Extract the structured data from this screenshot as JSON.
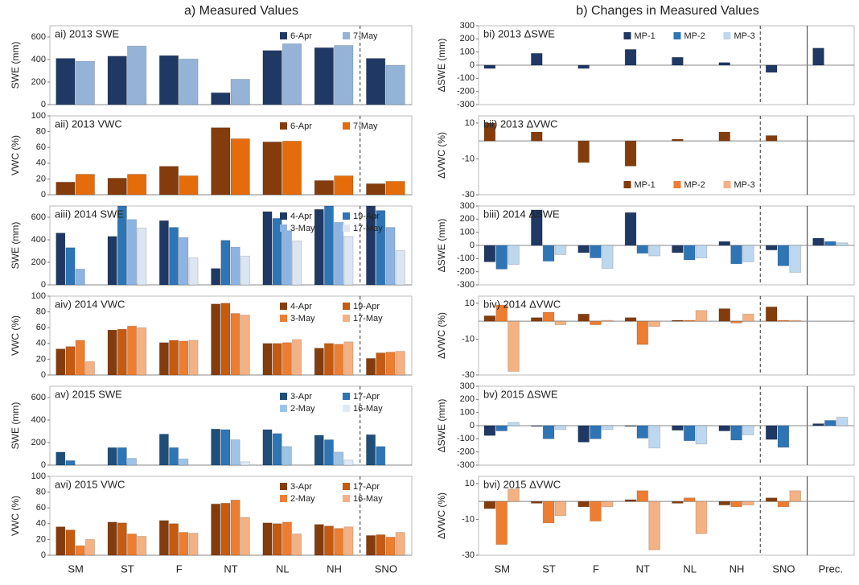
{
  "column_titles": [
    "a) Measured Values",
    "b) Changes in Measured Values"
  ],
  "chart_data": [
    {
      "type": "bar",
      "title": "ai) 2013 SWE",
      "ylabel": "SWE (mm)",
      "ylim": [
        0,
        700
      ],
      "yticks": [
        0,
        200,
        400,
        600
      ],
      "legend": "upper right",
      "series": [
        {
          "name": "6-Apr",
          "color": "#1f3864",
          "values": [
            410,
            430,
            435,
            105,
            480,
            505,
            410
          ]
        },
        {
          "name": "7-May",
          "color": "#95b3d7",
          "values": [
            385,
            520,
            405,
            225,
            540,
            525,
            350
          ]
        }
      ]
    },
    {
      "type": "bar",
      "title": "aii) 2013 VWC",
      "ylabel": "VWC (%)",
      "ylim": [
        0,
        100
      ],
      "yticks": [
        0,
        20,
        40,
        60,
        80,
        100
      ],
      "legend": "upper right",
      "series": [
        {
          "name": "6-Apr",
          "color": "#843c0c",
          "values": [
            16,
            21,
            36,
            85,
            67,
            18,
            14
          ]
        },
        {
          "name": "7-May",
          "color": "#e46c0a",
          "values": [
            26,
            26,
            24,
            71,
            68,
            24,
            17
          ]
        }
      ]
    },
    {
      "type": "bar",
      "title": "aiii) 2014 SWE",
      "ylabel": "SWE (mm)",
      "ylim": [
        0,
        700
      ],
      "yticks": [
        0,
        200,
        400,
        600
      ],
      "legend": "upper right",
      "series": [
        {
          "name": "4-Apr",
          "color": "#1f3864",
          "values": [
            460,
            430,
            570,
            145,
            650,
            670,
            700
          ]
        },
        {
          "name": "19-Apr",
          "color": "#2e75b6",
          "values": [
            330,
            700,
            510,
            395,
            590,
            700,
            660
          ]
        },
        {
          "name": "3-May",
          "color": "#8db3e2",
          "values": [
            140,
            580,
            420,
            335,
            480,
            555,
            510
          ]
        },
        {
          "name": "17-May",
          "color": "#dce6f2",
          "values": [
            null,
            505,
            240,
            255,
            390,
            430,
            305
          ]
        }
      ]
    },
    {
      "type": "bar",
      "title": "aiv) 2014 VWC",
      "ylabel": "VWC (%)",
      "ylim": [
        0,
        100
      ],
      "yticks": [
        0,
        20,
        40,
        60,
        80,
        100
      ],
      "legend": "upper right",
      "series": [
        {
          "name": "4-Apr",
          "color": "#843c0c",
          "values": [
            33,
            57,
            41,
            90,
            40,
            34,
            21
          ]
        },
        {
          "name": "19-Apr",
          "color": "#c55a11",
          "values": [
            36,
            58,
            44,
            91,
            40,
            40,
            28
          ]
        },
        {
          "name": "3-May",
          "color": "#ed7d31",
          "values": [
            44,
            62,
            43,
            78,
            41,
            39,
            29
          ]
        },
        {
          "name": "17-May",
          "color": "#f4b183",
          "values": [
            17,
            60,
            44,
            76,
            45,
            42,
            30
          ]
        }
      ]
    },
    {
      "type": "bar",
      "title": "av) 2015 SWE",
      "ylabel": "SWE (mm)",
      "ylim": [
        0,
        700
      ],
      "yticks": [
        0,
        200,
        400,
        600
      ],
      "legend": "upper right",
      "series": [
        {
          "name": "3-Apr",
          "color": "#1f4e79",
          "values": [
            115,
            155,
            275,
            320,
            315,
            265,
            270
          ]
        },
        {
          "name": "17-Apr",
          "color": "#2e75b6",
          "values": [
            40,
            155,
            155,
            315,
            280,
            225,
            165
          ]
        },
        {
          "name": "2-May",
          "color": "#9dc3e6",
          "values": [
            null,
            60,
            55,
            225,
            165,
            115,
            null
          ]
        },
        {
          "name": "16-May",
          "color": "#deebf7",
          "values": [
            null,
            null,
            null,
            30,
            null,
            45,
            null
          ]
        }
      ]
    },
    {
      "type": "bar",
      "title": "avi) 2015 VWC",
      "ylabel": "VWC (%)",
      "ylim": [
        0,
        100
      ],
      "yticks": [
        0,
        20,
        40,
        60,
        80,
        100
      ],
      "legend": "upper right",
      "categories": [
        "SM",
        "ST",
        "F",
        "NT",
        "NL",
        "NH",
        "SNO"
      ],
      "series": [
        {
          "name": "3-Apr",
          "color": "#843c0c",
          "values": [
            36,
            42,
            44,
            65,
            41,
            39,
            25
          ]
        },
        {
          "name": "17-Apr",
          "color": "#c55a11",
          "values": [
            32,
            41,
            40,
            66,
            40,
            37,
            26
          ]
        },
        {
          "name": "2-May",
          "color": "#ed7d31",
          "values": [
            12,
            27,
            29,
            70,
            42,
            34,
            23
          ]
        },
        {
          "name": "16-May",
          "color": "#f4b183",
          "values": [
            20,
            24,
            28,
            48,
            27,
            36,
            29
          ]
        }
      ]
    },
    {
      "type": "bar",
      "title": "bi) 2013 ΔSWE",
      "ylabel": "ΔSWE (mm)",
      "ylim": [
        -300,
        300
      ],
      "yticks": [
        -300,
        -200,
        -100,
        0,
        100,
        200,
        300
      ],
      "legend": "upper center",
      "series": [
        {
          "name": "MP-1",
          "color": "#1f3864",
          "values": [
            -25,
            90,
            -25,
            120,
            60,
            20,
            -55,
            130
          ]
        },
        {
          "name": "MP-2",
          "color": "#2e75b6",
          "values": [
            null,
            null,
            null,
            null,
            null,
            null,
            null,
            null
          ]
        },
        {
          "name": "MP-3",
          "color": "#bdd7ee",
          "values": [
            null,
            null,
            null,
            null,
            null,
            null,
            null,
            null
          ]
        }
      ]
    },
    {
      "type": "bar",
      "title": "bii) 2013 ΔVWC",
      "ylabel": "ΔVWC (%)",
      "ylim": [
        -30,
        14
      ],
      "yticks": [
        -30,
        -10,
        10
      ],
      "legend": "lower center",
      "series": [
        {
          "name": "MP-1",
          "color": "#843c0c",
          "values": [
            10,
            5,
            -12,
            -14,
            1,
            5,
            3,
            null
          ]
        },
        {
          "name": "MP-2",
          "color": "#ed7d31",
          "values": [
            null,
            null,
            null,
            null,
            null,
            null,
            null,
            null
          ]
        },
        {
          "name": "MP-3",
          "color": "#f4b183",
          "values": [
            null,
            null,
            null,
            null,
            null,
            null,
            null,
            null
          ]
        }
      ]
    },
    {
      "type": "bar",
      "title": "biii) 2014 ΔSWE",
      "ylabel": "ΔSWE (mm)",
      "ylim": [
        -300,
        300
      ],
      "yticks": [
        -300,
        -200,
        -100,
        0,
        100,
        200,
        300
      ],
      "series": [
        {
          "color": "#1f3864",
          "values": [
            -125,
            270,
            -55,
            250,
            -55,
            30,
            -35,
            55
          ]
        },
        {
          "color": "#2e75b6",
          "values": [
            -180,
            -120,
            -95,
            -60,
            -110,
            -140,
            -155,
            30
          ]
        },
        {
          "color": "#bdd7ee",
          "values": [
            -145,
            -70,
            -175,
            -80,
            -95,
            -125,
            -205,
            20
          ]
        }
      ]
    },
    {
      "type": "bar",
      "title": "biv) 2014 ΔVWC",
      "ylabel": "ΔVWC (%)",
      "ylim": [
        -30,
        14
      ],
      "yticks": [
        -30,
        -10,
        10
      ],
      "series": [
        {
          "color": "#843c0c",
          "values": [
            3,
            2,
            4,
            2,
            0.5,
            7,
            8,
            null
          ]
        },
        {
          "color": "#ed7d31",
          "values": [
            9,
            5,
            -2,
            -13,
            0.5,
            -1,
            0.5,
            null
          ]
        },
        {
          "color": "#f4b183",
          "values": [
            -28,
            -2,
            0.5,
            -3,
            6,
            4,
            0.5,
            null
          ]
        }
      ]
    },
    {
      "type": "bar",
      "title": "bv) 2015 ΔSWE",
      "ylabel": "ΔSWE (mm)",
      "ylim": [
        -300,
        300
      ],
      "yticks": [
        -300,
        -200,
        -100,
        0,
        100,
        200,
        300
      ],
      "series": [
        {
          "color": "#1f3864",
          "values": [
            -75,
            -5,
            -125,
            -5,
            -35,
            -40,
            -105,
            15
          ]
        },
        {
          "color": "#2e75b6",
          "values": [
            -40,
            -100,
            -100,
            -95,
            -115,
            -110,
            -165,
            40
          ]
        },
        {
          "color": "#bdd7ee",
          "values": [
            25,
            -30,
            -30,
            -170,
            -140,
            -70,
            null,
            65
          ]
        }
      ]
    },
    {
      "type": "bar",
      "title": "bvi) 2015 ΔVWC",
      "ylabel": "ΔVWC (%)",
      "ylim": [
        -30,
        14
      ],
      "yticks": [
        -30,
        -10,
        10
      ],
      "categories": [
        "SM",
        "ST",
        "F",
        "NT",
        "NL",
        "NH",
        "SNO",
        "Prec."
      ],
      "series": [
        {
          "color": "#843c0c",
          "values": [
            -4,
            -1,
            -3,
            1,
            -1,
            -2,
            2,
            null
          ]
        },
        {
          "color": "#ed7d31",
          "values": [
            -24,
            -12,
            -11,
            6,
            2,
            -3,
            -3,
            null
          ]
        },
        {
          "color": "#f4b183",
          "values": [
            7,
            -8,
            -3,
            -27,
            -18,
            -2,
            6,
            null
          ]
        }
      ]
    }
  ]
}
